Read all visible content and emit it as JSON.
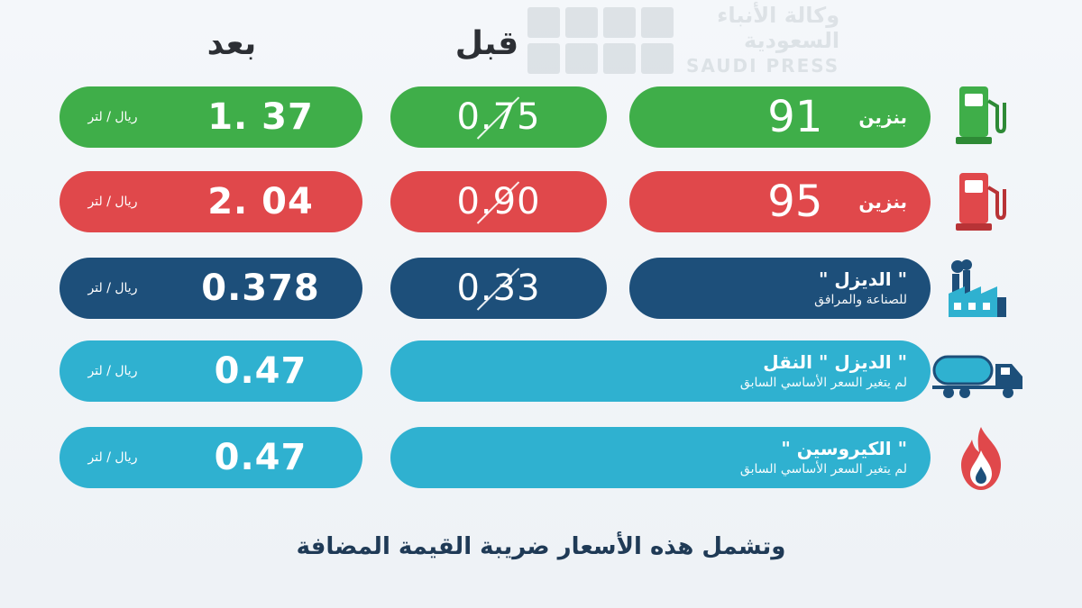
{
  "headers": {
    "after": "بعد",
    "before": "قبل"
  },
  "watermark": {
    "ar_line1": "وكالة الأنباء",
    "ar_line2": "السعودية",
    "en": "SAUDI PRESS"
  },
  "unit": "ريال / لتر",
  "rows": [
    {
      "type_label": "بنزين",
      "type_value": "91",
      "before": "0.75",
      "after": "1. 37",
      "color": "#3fae49",
      "icon": "fuel-pump-icon"
    },
    {
      "type_label": "بنزين",
      "type_value": "95",
      "before": "0.90",
      "after": "2. 04",
      "color": "#e0484b",
      "icon": "fuel-pump-icon"
    },
    {
      "type_label": "\" الديزل \"",
      "type_note": "للصناعة والمرافق",
      "before": "0.33",
      "after": "0.378",
      "color": "#1d4f7a",
      "icon": "factory-icon"
    },
    {
      "type_label": "\" الديزل \" النقل",
      "type_note": "لم يتغير السعر الأساسي السابق",
      "after": "0.47",
      "color": "#2fb1d0",
      "icon": "tanker-truck-icon"
    },
    {
      "type_label": "\" الكيروسين \"",
      "type_note": "لم يتغير السعر الأساسي السابق",
      "after": "0.47",
      "color": "#2fb1d0",
      "icon": "flame-icon"
    }
  ],
  "footer": "وتشمل هذه الأسعار ضريبة القيمة المضافة"
}
